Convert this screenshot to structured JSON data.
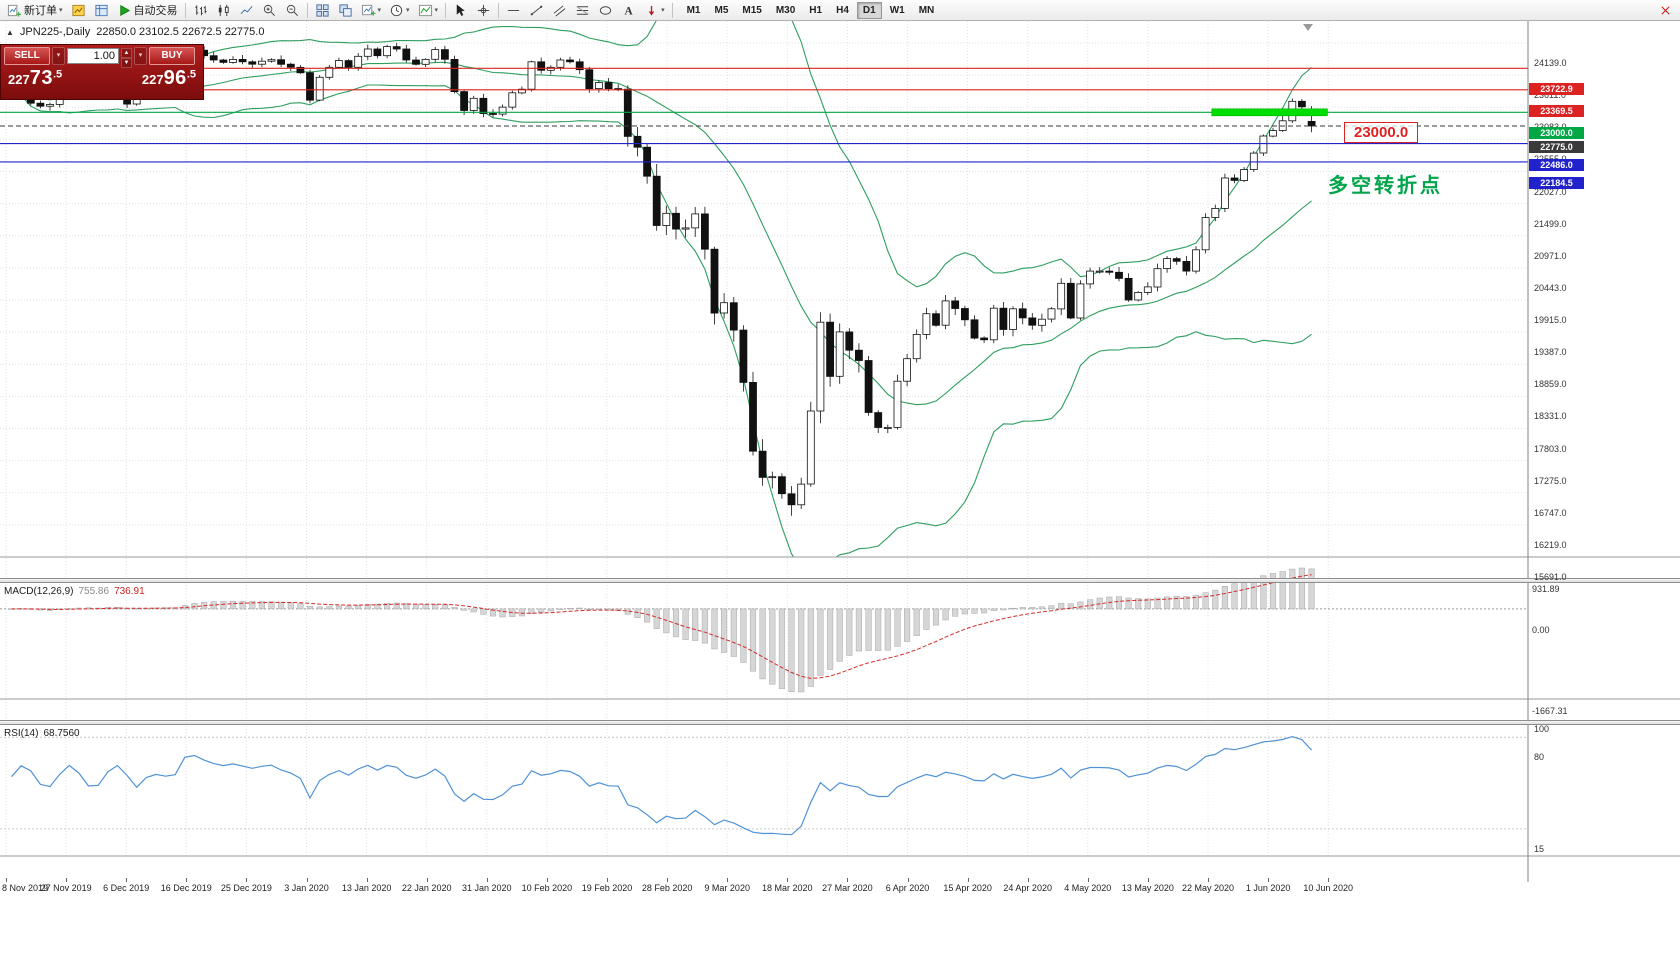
{
  "toolbar": {
    "new_order": "新订单",
    "autotrading": "自动交易",
    "timeframes": [
      "M1",
      "M5",
      "M15",
      "M30",
      "H1",
      "H4",
      "D1",
      "W1",
      "MN"
    ],
    "active_timeframe": "D1"
  },
  "header": {
    "symbol": "JPN225-,Daily",
    "ohlc": "22850.0 23102.5 22672.5 22775.0"
  },
  "one_click": {
    "sell_label": "SELL",
    "buy_label": "BUY",
    "volume": "1.00",
    "sell_price": "22773.5",
    "buy_price": "22796.5"
  },
  "annotations": {
    "level_box": "23000.0",
    "turning_point": "多空转折点"
  },
  "price_axis": {
    "ticks": [
      24139.0,
      23611.0,
      23083.0,
      22555.0,
      22027.0,
      21499.0,
      20971.0,
      20443.0,
      19915.0,
      19387.0,
      18859.0,
      18331.0,
      17803.0,
      17275.0,
      16747.0,
      16219.0,
      15691.0
    ]
  },
  "levels": [
    {
      "price": 23722.9,
      "label": "23722.9",
      "color": "#dd2222",
      "style": "solid"
    },
    {
      "price": 23369.5,
      "label": "23369.5",
      "color": "#dd2222",
      "style": "solid"
    },
    {
      "price": 23000.0,
      "label": "23000.0",
      "color": "#00a844",
      "style": "solid"
    },
    {
      "price": 22775.0,
      "label": "22775.0",
      "color": "#3a3a3a",
      "style": "dashed"
    },
    {
      "price": 22486.0,
      "label": "22486.0",
      "color": "#2222cc",
      "style": "solid"
    },
    {
      "price": 22184.5,
      "label": "22184.5",
      "color": "#2222cc",
      "style": "solid"
    }
  ],
  "highlight": {
    "price": 23000.0,
    "from_index": 125,
    "to_index": 137,
    "color": "#00dd00"
  },
  "macd_panel": {
    "title": "MACD(12,26,9)",
    "main_value": "755.86",
    "signal_value": "736.91",
    "axis": {
      "max_label": "931.89",
      "zero_label": "0.00",
      "min_label": "-1667.31"
    }
  },
  "rsi_panel": {
    "title": "RSI(14)",
    "value": "68.7560",
    "levels": [
      {
        "value": 100,
        "label": "100"
      },
      {
        "value": 80,
        "label": "80"
      },
      {
        "value": 15,
        "label": "15"
      }
    ]
  },
  "date_labels": [
    "8 Nov 2019",
    "27 Nov 2019",
    "6 Dec 2019",
    "16 Dec 2019",
    "25 Dec 2019",
    "3 Jan 2020",
    "13 Jan 2020",
    "22 Jan 2020",
    "31 Jan 2020",
    "10 Feb 2020",
    "19 Feb 2020",
    "28 Feb 2020",
    "9 Mar 2020",
    "18 Mar 2020",
    "27 Mar 2020",
    "6 Apr 2020",
    "15 Apr 2020",
    "24 Apr 2020",
    "4 May 2020",
    "13 May 2020",
    "22 May 2020",
    "1 Jun 2020",
    "10 Jun 2020"
  ],
  "chart_data": {
    "type": "candlestick",
    "symbol": "JPN225-",
    "period": "Daily",
    "current_ohlc": {
      "open": 22850.0,
      "high": 23102.5,
      "low": 22672.5,
      "close": 22775.0
    },
    "y_range_hint": [
      15691,
      24187
    ],
    "indicators": [
      {
        "type": "bollinger",
        "period": 20,
        "deviation": 2,
        "color": "#2e9e5f"
      },
      {
        "type": "macd",
        "fast": 12,
        "slow": 26,
        "signal": 9
      },
      {
        "type": "rsi",
        "period": 14
      }
    ],
    "closes": [
      23300,
      23340,
      23150,
      23100,
      23130,
      23380,
      23520,
      23450,
      23410,
      23290,
      23530,
      23380,
      23135,
      23300,
      23350,
      23430,
      23390,
      23425,
      23950,
      24020,
      23930,
      23860,
      23820,
      23870,
      23830,
      23790,
      23840,
      23865,
      23790,
      23740,
      23650,
      23200,
      23575,
      23740,
      23850,
      23740,
      23920,
      24040,
      23930,
      24080,
      24040,
      23860,
      23790,
      23870,
      24030,
      23870,
      23340,
      23030,
      23230,
      22980,
      22970,
      23085,
      23320,
      23380,
      23830,
      23690,
      23740,
      23860,
      23830,
      23700,
      23390,
      23490,
      23390,
      23380,
      22605,
      22426,
      21950,
      21140,
      21340,
      21080,
      21100,
      21330,
      20750,
      19700,
      19870,
      19420,
      18560,
      17430,
      17000,
      17010,
      16730,
      16550,
      16890,
      18090,
      19550,
      18660,
      19390,
      19090,
      18920,
      18065,
      17820,
      17820,
      18580,
      18950,
      19350,
      19690,
      19500,
      19900,
      19775,
      19590,
      19290,
      19260,
      19780,
      19430,
      19770,
      19620,
      19500,
      19600,
      19770,
      20190,
      19620,
      20180,
      20390,
      20390,
      20370,
      20270,
      19915,
      20040,
      20130,
      20430,
      20595,
      20550,
      20390,
      20740,
      21270,
      21420,
      21920,
      21880,
      22060,
      22330,
      22610,
      22700,
      22860,
      23180,
      23090,
      22775
    ]
  }
}
